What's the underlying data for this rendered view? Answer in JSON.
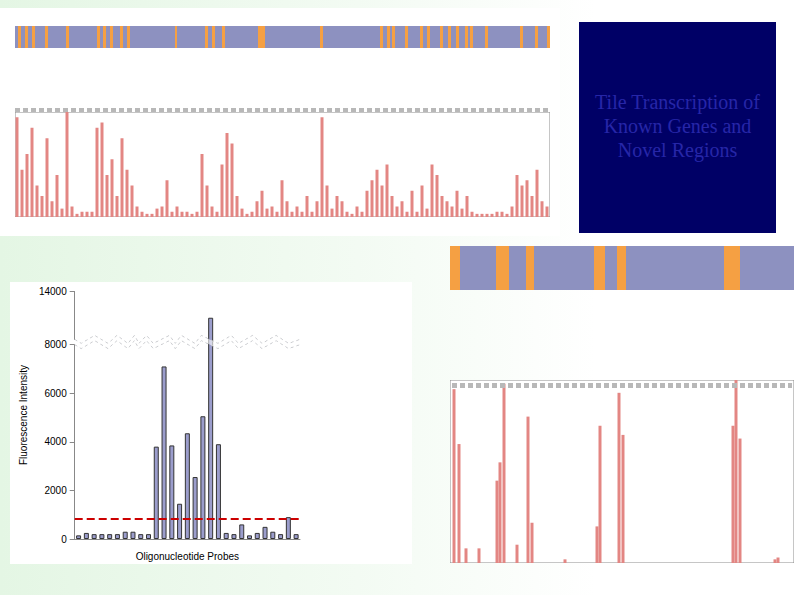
{
  "header": {
    "title": "Tile Transcription of Known Genes and Novel Regions"
  },
  "chart_data": [
    {
      "type": "bar",
      "x": [
        2,
        7,
        12,
        17,
        22,
        27,
        32,
        37,
        42,
        47,
        52,
        57,
        62,
        67,
        72,
        77,
        82,
        87,
        92,
        97,
        102,
        107,
        112,
        117,
        122,
        127,
        132,
        137,
        142,
        147,
        152,
        157,
        162,
        167,
        172,
        177,
        182,
        187,
        192,
        197,
        202,
        207,
        212,
        217,
        222,
        227,
        232,
        237,
        242,
        247,
        252,
        257,
        262,
        267,
        272,
        277,
        282,
        287,
        292,
        297,
        302,
        307,
        312,
        317,
        322,
        327,
        332,
        337,
        342,
        347,
        352,
        357,
        362,
        367,
        372,
        377,
        382,
        387,
        392,
        397,
        402,
        407,
        412,
        417,
        422,
        427,
        432,
        437,
        442,
        447,
        452,
        457,
        462,
        467,
        472,
        477,
        482,
        487,
        492,
        497,
        502,
        507,
        512,
        517,
        522,
        527,
        532
      ],
      "values": [
        95,
        45,
        60,
        85,
        30,
        20,
        75,
        15,
        40,
        8,
        100,
        10,
        3,
        5,
        5,
        5,
        85,
        90,
        40,
        55,
        20,
        75,
        45,
        30,
        10,
        5,
        3,
        3,
        8,
        10,
        35,
        5,
        10,
        5,
        5,
        3,
        5,
        60,
        30,
        10,
        5,
        50,
        80,
        70,
        20,
        8,
        3,
        5,
        15,
        25,
        8,
        10,
        5,
        35,
        15,
        5,
        10,
        5,
        20,
        5,
        15,
        95,
        30,
        8,
        20,
        15,
        5,
        3,
        10,
        5,
        25,
        35,
        45,
        30,
        50,
        20,
        10,
        15,
        5,
        25,
        5,
        30,
        8,
        50,
        40,
        20,
        15,
        10,
        25,
        8,
        20,
        5,
        3,
        3,
        3,
        3,
        5,
        5,
        3,
        10,
        40,
        30,
        35,
        20,
        45,
        15,
        10
      ],
      "color": "#e38683",
      "xlim": [
        0,
        535
      ],
      "ylim": [
        0,
        100
      ],
      "tick_labels": false,
      "exons": [
        [
          3,
          6
        ],
        [
          10,
          13
        ],
        [
          17,
          20
        ],
        [
          30,
          33
        ],
        [
          51,
          54
        ],
        [
          82,
          85
        ],
        [
          88,
          91
        ],
        [
          95,
          98
        ],
        [
          105,
          108
        ],
        [
          112,
          115
        ],
        [
          160,
          162
        ],
        [
          190,
          193
        ],
        [
          197,
          200
        ],
        [
          207,
          210
        ],
        [
          243,
          250
        ],
        [
          305,
          308
        ],
        [
          365,
          368
        ],
        [
          372,
          375
        ],
        [
          377,
          380
        ],
        [
          390,
          393
        ],
        [
          405,
          408
        ],
        [
          412,
          415
        ],
        [
          425,
          428
        ],
        [
          433,
          436
        ],
        [
          441,
          444
        ],
        [
          450,
          453
        ],
        [
          455,
          458
        ],
        [
          470,
          473
        ],
        [
          505,
          508
        ],
        [
          520,
          523
        ],
        [
          532,
          535
        ]
      ]
    },
    {
      "type": "bar",
      "categories": [
        null,
        null,
        null,
        null,
        null,
        null,
        null,
        null,
        null,
        null,
        null,
        null,
        null,
        null,
        null,
        null,
        null,
        null,
        null,
        null,
        null,
        null,
        null,
        null,
        null,
        null,
        null,
        null,
        null
      ],
      "values": [
        150,
        250,
        200,
        200,
        200,
        200,
        300,
        300,
        200,
        200,
        3800,
        7100,
        3850,
        1450,
        4350,
        2550,
        5050,
        12900,
        3900,
        250,
        200,
        600,
        150,
        250,
        500,
        300,
        200,
        900,
        200
      ],
      "color": "#9b9dcc",
      "xlabel": "Oligonucleotide Probes",
      "ylabel": "Fluorescence Intensity",
      "ylim": [
        0,
        14000
      ],
      "yticks": [
        0,
        2000,
        4000,
        6000,
        8000,
        14000
      ],
      "ybreak": [
        8000,
        12000
      ],
      "threshold": 820,
      "tick_labels": "y"
    },
    {
      "type": "bar",
      "x": [
        4,
        9,
        16,
        29,
        47,
        50,
        54,
        67,
        78,
        82,
        115,
        147,
        150,
        169,
        173,
        283,
        286,
        290,
        325,
        328
      ],
      "values": [
        95,
        65,
        8,
        8,
        45,
        55,
        98,
        10,
        80,
        22,
        2,
        20,
        75,
        93,
        70,
        75,
        100,
        68,
        2,
        3
      ],
      "color": "#e38683",
      "xlim": [
        0,
        344
      ],
      "ylim": [
        0,
        100
      ],
      "tick_labels": false,
      "exons": [
        [
          0,
          10
        ],
        [
          46,
          59
        ],
        [
          76,
          84
        ],
        [
          144,
          155
        ],
        [
          167,
          176
        ],
        [
          274,
          290
        ]
      ]
    }
  ]
}
